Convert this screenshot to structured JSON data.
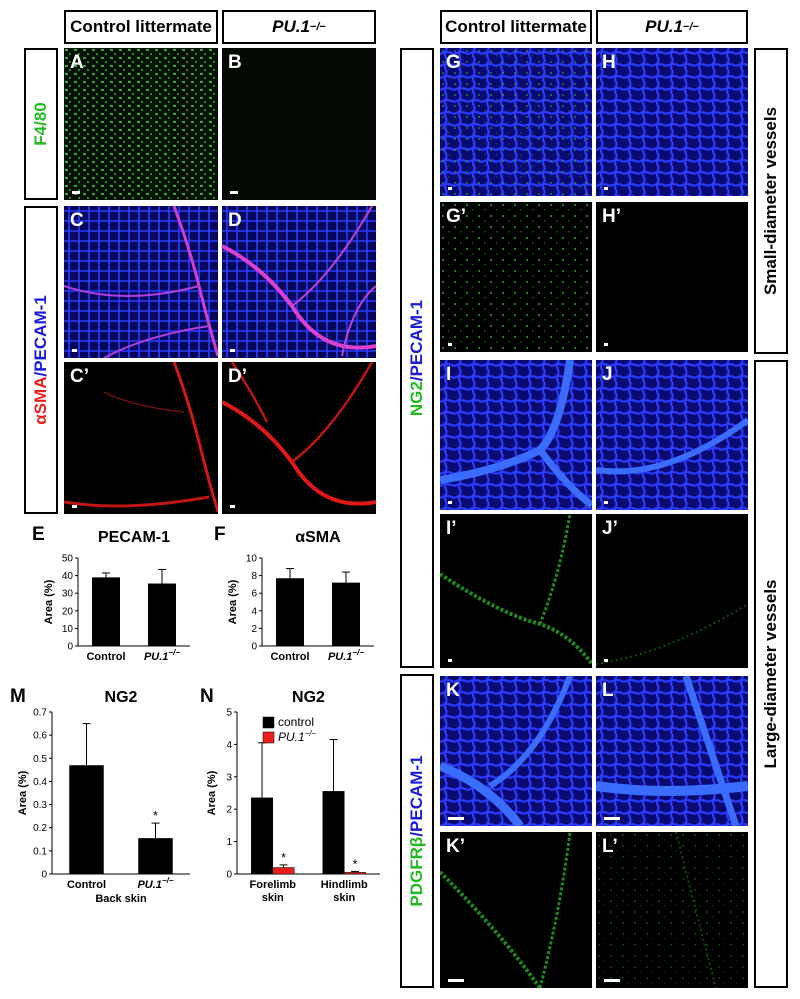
{
  "headers": {
    "left_control": "Control littermate",
    "left_pu1": "PU.1",
    "right_control": "Control littermate",
    "right_pu1": "PU.1",
    "pu1_sup": "−/−"
  },
  "row_labels": {
    "f480": "F4/80",
    "asma_a": "αSMA",
    "asma_b": "/PECAM-1",
    "ng2_a": "NG2",
    "ng2_b": "/PECAM-1",
    "pdgfrb_a": "PDGFRβ",
    "pdgfrb_b": "/PECAM-1",
    "small_vessels": "Small-diameter vessels",
    "large_vessels": "Large-diameter vessels"
  },
  "panels": {
    "A": "A",
    "B": "B",
    "C": "C",
    "D": "D",
    "C2": "C’",
    "D2": "D’",
    "G": "G",
    "H": "H",
    "G2": "G’",
    "H2": "H’",
    "I": "I",
    "J": "J",
    "I2": "I’",
    "J2": "J’",
    "K": "K",
    "L": "L",
    "K2": "K’",
    "L2": "L’"
  },
  "chart_data": [
    {
      "id": "E",
      "type": "bar",
      "panel_letter": "E",
      "title": "PECAM-1",
      "ylabel": "Area (%)",
      "ylim": [
        0,
        50
      ],
      "yticks": [
        0,
        10,
        20,
        30,
        40,
        50
      ],
      "categories": [
        "Control",
        "PU.1"
      ],
      "category_sup": [
        "",
        "−/−"
      ],
      "values": [
        39,
        35.5
      ],
      "errors": [
        2.5,
        8
      ],
      "colors": [
        "#000000",
        "#000000"
      ],
      "significance": [
        "",
        ""
      ]
    },
    {
      "id": "F",
      "type": "bar",
      "panel_letter": "F",
      "title": "αSMA",
      "ylabel": "Area (%)",
      "ylim": [
        0,
        10
      ],
      "yticks": [
        0,
        2,
        4,
        6,
        8,
        10
      ],
      "categories": [
        "Control",
        "PU.1"
      ],
      "category_sup": [
        "",
        "−/−"
      ],
      "values": [
        7.7,
        7.2
      ],
      "errors": [
        1.1,
        1.2
      ],
      "colors": [
        "#000000",
        "#000000"
      ],
      "significance": [
        "",
        ""
      ]
    },
    {
      "id": "M",
      "type": "bar",
      "panel_letter": "M",
      "title": "NG2",
      "ylabel": "Area (%)",
      "ylim": [
        0,
        0.7
      ],
      "yticks": [
        0,
        0.1,
        0.2,
        0.3,
        0.4,
        0.5,
        0.6,
        0.7
      ],
      "categories": [
        "Control",
        "PU.1"
      ],
      "category_sup": [
        "",
        "−/−"
      ],
      "values": [
        0.47,
        0.155
      ],
      "errors": [
        0.18,
        0.065
      ],
      "colors": [
        "#000000",
        "#000000"
      ],
      "significance": [
        "",
        "*"
      ],
      "xlabel": "Back skin"
    },
    {
      "id": "N",
      "type": "bar",
      "panel_letter": "N",
      "title": "NG2",
      "ylabel": "Area (%)",
      "ylim": [
        0,
        5
      ],
      "yticks": [
        0,
        1,
        2,
        3,
        4,
        5
      ],
      "groups": [
        "Forelimb skin",
        "Hindlimb skin"
      ],
      "series": [
        {
          "name": "control",
          "values": [
            2.35,
            2.55
          ],
          "errors": [
            1.7,
            1.6
          ],
          "color": "#000000",
          "significance": [
            "",
            ""
          ]
        },
        {
          "name": "PU.1",
          "name_sup": "−/−",
          "values": [
            0.2,
            0.05
          ],
          "errors": [
            0.08,
            0.03
          ],
          "color": "#e8201c",
          "significance": [
            "*",
            "*"
          ]
        }
      ],
      "legend_position": "top"
    }
  ]
}
